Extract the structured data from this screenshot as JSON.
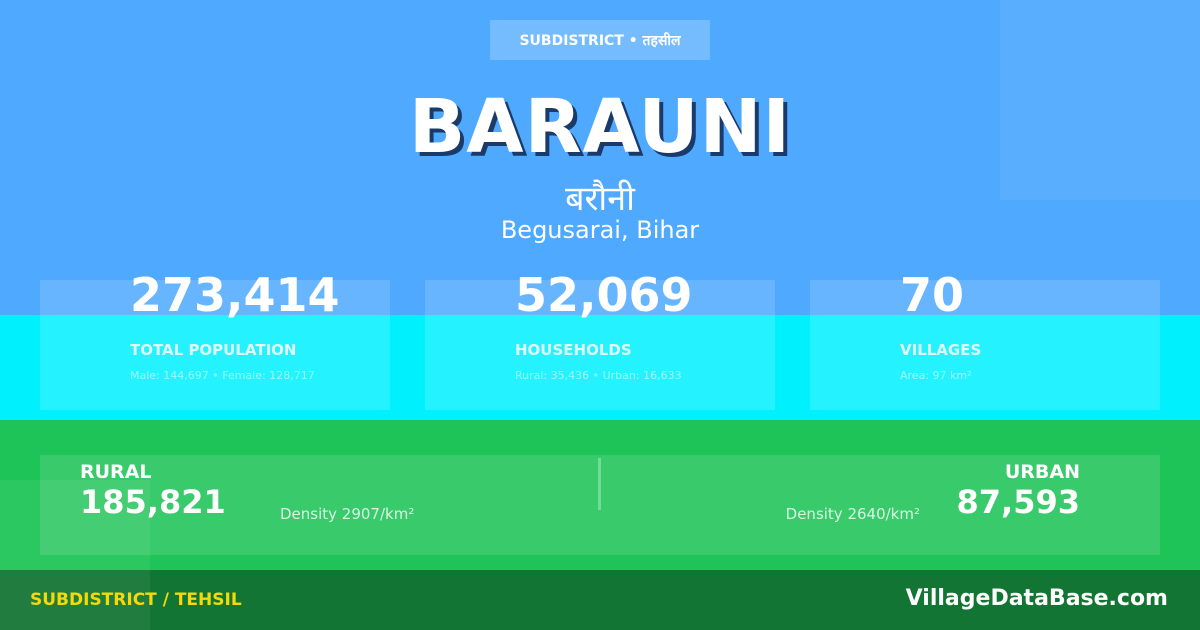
{
  "badge": "SUBDISTRICT • तहसील",
  "title": "BARAUNI",
  "title_hindi": "बरौनी",
  "location": "Begusarai, Bihar",
  "stats": [
    {
      "value": "273,414",
      "label": "TOTAL POPULATION",
      "sub": "Male: 144,697 • Female: 128,717"
    },
    {
      "value": "52,069",
      "label": "HOUSEHOLDS",
      "sub": "Rural: 35,436 • Urban: 16,633"
    },
    {
      "value": "70",
      "label": "VILLAGES",
      "sub": "Area: 97 km²"
    }
  ],
  "rural": {
    "label": "RURAL",
    "value": "185,821",
    "density": "Density 2907/km²"
  },
  "urban": {
    "label": "URBAN",
    "value": "87,593",
    "density": "Density 2640/km²"
  },
  "footer": {
    "type": "SUBDISTRICT / TEHSIL",
    "brand": "VillageDataBase.com"
  },
  "colors": {
    "blue": "#4FA9FE",
    "cyan": "#00F0FE",
    "green": "#1EC457",
    "dark_green": "#137533",
    "accent": "#F5D90A"
  }
}
